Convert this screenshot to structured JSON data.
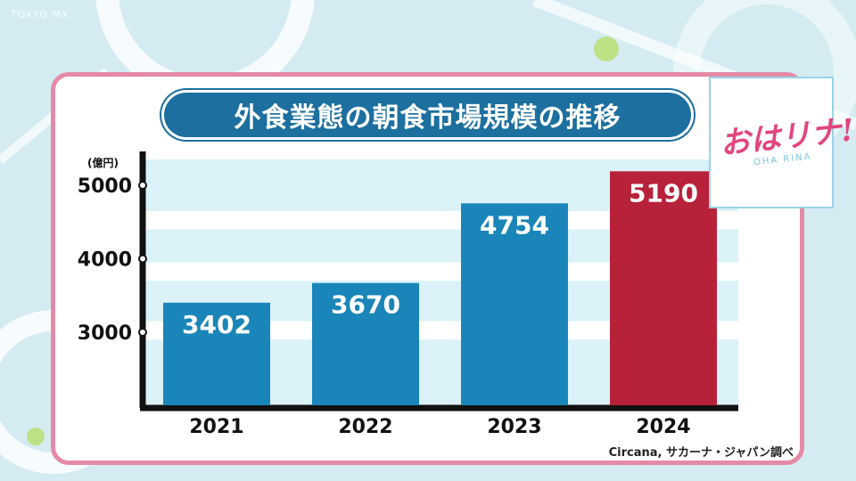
{
  "channel": {
    "logo_text": "TOKYO MX"
  },
  "show": {
    "logo_main": "おはリナ!",
    "logo_sub": "OHA RINA"
  },
  "title": "外食業態の朝食市場規模の推移",
  "source": "Circana, サカーナ・ジャパン調べ",
  "colors": {
    "bar_normal": "#1a85b8",
    "bar_highlight": "#b8213a",
    "band_light": "#daf2f8",
    "axis": "#111111",
    "title_bg": "#1c6f9e",
    "frame": "#e58aa6"
  },
  "chart_data": {
    "type": "bar",
    "title": "外食業態の朝食市場規模の推移",
    "unit_label": "(億円)",
    "categories": [
      "2021",
      "2022",
      "2023",
      "2024"
    ],
    "values": [
      3402,
      3670,
      4754,
      5190
    ],
    "value_labels": [
      "3402",
      "3670",
      "4754",
      "5190"
    ],
    "highlight_index": 3,
    "yticks": [
      3000,
      4000,
      5000
    ],
    "ytick_labels": [
      "3000",
      "4000",
      "5000"
    ],
    "ylim": [
      2000,
      5350
    ],
    "grid": false,
    "legend": "none"
  }
}
